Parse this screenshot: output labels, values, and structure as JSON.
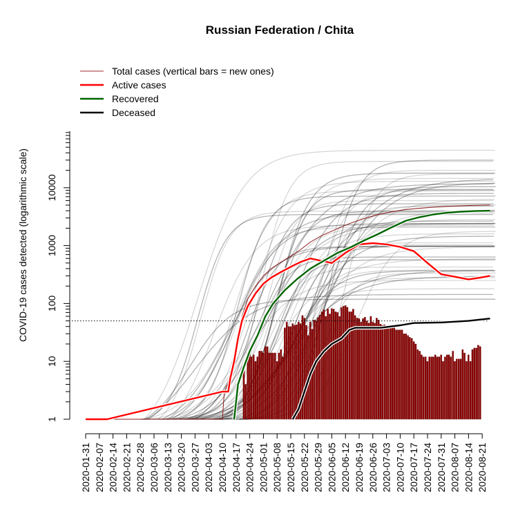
{
  "chart_data": {
    "type": "line",
    "title": "Russian Federation / Chita",
    "ylabel": "COVID-19 cases detected (logarithmic scale)",
    "xlabel": "",
    "y_scale": "log",
    "ylim": [
      1,
      100000
    ],
    "y_tick_labels": [
      "1",
      "10",
      "100",
      "1000",
      "10000"
    ],
    "x_tick_labels": [
      "2020-01-31",
      "2020-02-07",
      "2020-02-14",
      "2020-02-21",
      "2020-02-28",
      "2020-03-06",
      "2020-03-13",
      "2020-03-20",
      "2020-03-27",
      "2020-04-03",
      "2020-04-10",
      "2020-04-17",
      "2020-04-24",
      "2020-05-01",
      "2020-05-08",
      "2020-05-15",
      "2020-05-22",
      "2020-05-29",
      "2020-06-05",
      "2020-06-12",
      "2020-06-19",
      "2020-06-26",
      "2020-07-03",
      "2020-07-10",
      "2020-07-17",
      "2020-07-24",
      "2020-07-31",
      "2020-08-07",
      "2020-08-14",
      "2020-08-21"
    ],
    "reference_line": {
      "y": 50,
      "style": "dotted"
    },
    "legend": {
      "placement": "top-left",
      "entries": [
        {
          "label": "Total cases (vertical bars = new ones)",
          "color": "#a52a2a"
        },
        {
          "label": "Active cases",
          "color": "#ff0000"
        },
        {
          "label": "Recovered",
          "color": "#006400"
        },
        {
          "label": "Deceased",
          "color": "#000000"
        }
      ]
    },
    "colors": {
      "bars": "#8b0000",
      "total": "#8b1a1a",
      "active": "#ff0000",
      "recovered": "#006400",
      "deceased": "#000000",
      "background_regions": "#000000"
    },
    "series": [
      {
        "name": "Total cases",
        "points": [
          [
            "2020-01-31",
            1
          ],
          [
            "2020-04-10",
            1
          ],
          [
            "2020-04-11",
            3
          ],
          [
            "2020-04-14",
            5
          ],
          [
            "2020-04-16",
            10
          ],
          [
            "2020-04-18",
            25
          ],
          [
            "2020-04-20",
            60
          ],
          [
            "2020-04-23",
            120
          ],
          [
            "2020-04-27",
            200
          ],
          [
            "2020-05-01",
            300
          ],
          [
            "2020-05-05",
            400
          ],
          [
            "2020-05-10",
            520
          ],
          [
            "2020-05-15",
            650
          ],
          [
            "2020-05-20",
            850
          ],
          [
            "2020-05-25",
            1150
          ],
          [
            "2020-05-31",
            1500
          ],
          [
            "2020-06-07",
            1900
          ],
          [
            "2020-06-14",
            2400
          ],
          [
            "2020-06-21",
            2900
          ],
          [
            "2020-06-28",
            3400
          ],
          [
            "2020-07-05",
            3800
          ],
          [
            "2020-07-12",
            4150
          ],
          [
            "2020-07-19",
            4400
          ],
          [
            "2020-07-26",
            4600
          ],
          [
            "2020-08-02",
            4750
          ],
          [
            "2020-08-09",
            4850
          ],
          [
            "2020-08-16",
            4950
          ],
          [
            "2020-08-25",
            5050
          ]
        ]
      },
      {
        "name": "Active cases",
        "points": [
          [
            "2020-01-31",
            1
          ],
          [
            "2020-02-11",
            1
          ],
          [
            "2020-04-10",
            3
          ],
          [
            "2020-04-13",
            3
          ],
          [
            "2020-04-14",
            5
          ],
          [
            "2020-04-16",
            10
          ],
          [
            "2020-04-18",
            25
          ],
          [
            "2020-04-20",
            50
          ],
          [
            "2020-04-23",
            90
          ],
          [
            "2020-04-27",
            150
          ],
          [
            "2020-05-01",
            220
          ],
          [
            "2020-05-05",
            280
          ],
          [
            "2020-05-10",
            350
          ],
          [
            "2020-05-15",
            430
          ],
          [
            "2020-05-20",
            520
          ],
          [
            "2020-05-25",
            600
          ],
          [
            "2020-06-05",
            500
          ],
          [
            "2020-06-12",
            750
          ],
          [
            "2020-06-19",
            1050
          ],
          [
            "2020-06-26",
            1100
          ],
          [
            "2020-07-03",
            1050
          ],
          [
            "2020-07-10",
            950
          ],
          [
            "2020-07-17",
            800
          ],
          [
            "2020-07-24",
            500
          ],
          [
            "2020-07-31",
            320
          ],
          [
            "2020-08-07",
            290
          ],
          [
            "2020-08-14",
            260
          ],
          [
            "2020-08-20",
            280
          ],
          [
            "2020-08-25",
            300
          ]
        ]
      },
      {
        "name": "Recovered",
        "points": [
          [
            "2020-04-16",
            1
          ],
          [
            "2020-04-18",
            4
          ],
          [
            "2020-04-21",
            8
          ],
          [
            "2020-04-24",
            15
          ],
          [
            "2020-04-28",
            28
          ],
          [
            "2020-05-02",
            60
          ],
          [
            "2020-05-06",
            100
          ],
          [
            "2020-05-12",
            170
          ],
          [
            "2020-05-18",
            260
          ],
          [
            "2020-05-25",
            400
          ],
          [
            "2020-06-01",
            550
          ],
          [
            "2020-06-08",
            750
          ],
          [
            "2020-06-15",
            950
          ],
          [
            "2020-06-22",
            1250
          ],
          [
            "2020-06-29",
            1600
          ],
          [
            "2020-07-06",
            2100
          ],
          [
            "2020-07-13",
            2700
          ],
          [
            "2020-07-20",
            3100
          ],
          [
            "2020-07-27",
            3450
          ],
          [
            "2020-08-03",
            3700
          ],
          [
            "2020-08-10",
            3850
          ],
          [
            "2020-08-17",
            3950
          ],
          [
            "2020-08-25",
            4000
          ]
        ]
      },
      {
        "name": "Deceased",
        "points": [
          [
            "2020-05-16",
            1
          ],
          [
            "2020-05-19",
            1.5
          ],
          [
            "2020-05-22",
            3
          ],
          [
            "2020-05-25",
            6
          ],
          [
            "2020-05-28",
            10
          ],
          [
            "2020-06-01",
            15
          ],
          [
            "2020-06-05",
            20
          ],
          [
            "2020-06-10",
            25
          ],
          [
            "2020-06-14",
            35
          ],
          [
            "2020-06-17",
            38
          ],
          [
            "2020-06-30",
            38
          ],
          [
            "2020-07-10",
            42
          ],
          [
            "2020-07-17",
            46
          ],
          [
            "2020-07-31",
            47
          ],
          [
            "2020-08-14",
            50
          ],
          [
            "2020-08-25",
            55
          ]
        ]
      }
    ],
    "new_cases_bars": {
      "start": "2020-04-21",
      "values": [
        8,
        4,
        14,
        15,
        12,
        13,
        10,
        12,
        15,
        15,
        14,
        18,
        18,
        14,
        14,
        14,
        14,
        10,
        14,
        16,
        12,
        38,
        48,
        40,
        40,
        45,
        42,
        43,
        48,
        45,
        62,
        56,
        42,
        28,
        48,
        36,
        52,
        50,
        57,
        63,
        72,
        78,
        60,
        80,
        66,
        82,
        80,
        72,
        70,
        60,
        85,
        90,
        92,
        86,
        72,
        72,
        80,
        62,
        56,
        55,
        48,
        55,
        58,
        50,
        46,
        60,
        48,
        46,
        56,
        52,
        44,
        42,
        43,
        40,
        40,
        42,
        38,
        40,
        35,
        35,
        35,
        35,
        30,
        30,
        28,
        26,
        25,
        22,
        20,
        16,
        15,
        13,
        12,
        12,
        10,
        12,
        12,
        12,
        13,
        12,
        12,
        13,
        10,
        12,
        13,
        13,
        12,
        15,
        10,
        11,
        11,
        11,
        16,
        14,
        10,
        13,
        10,
        16,
        17,
        17,
        19,
        18
      ]
    }
  }
}
